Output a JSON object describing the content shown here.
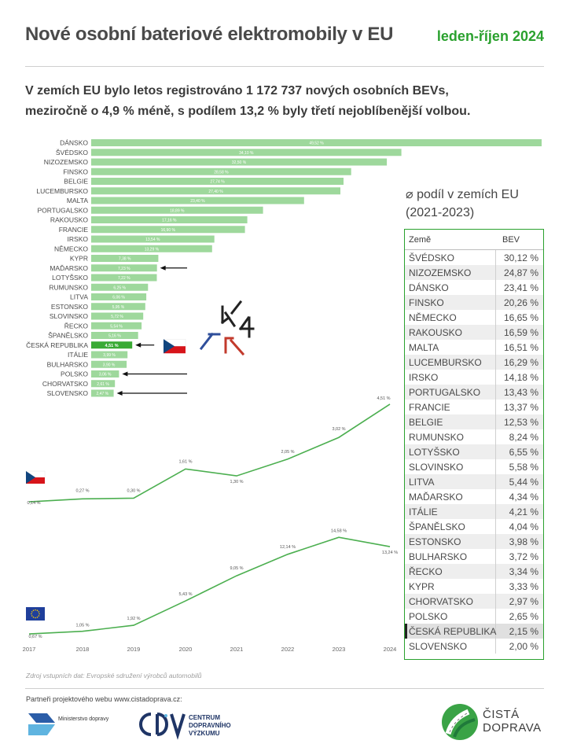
{
  "header": {
    "title": "Nové osobní bateriové elektromobily v EU",
    "period": "leden-říjen 2024",
    "lead_line1": "V zemích EU bylo letos registrováno 1 172 737 nových osobních BEVs,",
    "lead_line2": "meziročně o 4,9 % méně, s podílem 13,2 % byly třetí nejoblíbenější volbou."
  },
  "colors": {
    "bar": "#9ed89c",
    "bar_highlight": "#3aaa35",
    "line": "#4caf50",
    "accent": "#2aa12e"
  },
  "chart_data": [
    {
      "type": "bar",
      "orientation": "horizontal",
      "categories": [
        "DÁNSKO",
        "ŠVÉDSKO",
        "NIZOZEMSKO",
        "FINSKO",
        "BELGIE",
        "LUCEMBURSKO",
        "MALTA",
        "PORTUGALSKO",
        "RAKOUSKO",
        "FRANCIE",
        "IRSKO",
        "NĚMECKO",
        "KYPR",
        "MAĎARSKO",
        "LOTYŠSKO",
        "RUMUNSKO",
        "LITVA",
        "ESTONSKO",
        "SLOVINSKO",
        "ŘECKO",
        "ŠPANĚLSKO",
        "ČESKÁ REPUBLIKA",
        "ITÁLIE",
        "BULHARSKO",
        "POLSKO",
        "CHORVATSKO",
        "SLOVENSKO"
      ],
      "values": [
        49.52,
        34.1,
        32.5,
        28.58,
        27.74,
        27.4,
        23.4,
        18.89,
        17.16,
        16.9,
        13.54,
        13.29,
        7.38,
        7.23,
        7.22,
        6.25,
        6.06,
        5.95,
        5.72,
        5.54,
        5.16,
        4.51,
        3.99,
        3.9,
        3.06,
        2.61,
        2.47
      ],
      "value_labels": [
        "49,52 %",
        "34,10 %",
        "32,50 %",
        "28,58 %",
        "27,74 %",
        "27,40 %",
        "23,40 %",
        "18,89 %",
        "17,16 %",
        "16,90 %",
        "13,54 %",
        "13,29 %",
        "7,38 %",
        "7,23 %",
        "7,22 %",
        "6,25 %",
        "6,06 %",
        "5,95 %",
        "5,72 %",
        "5,54 %",
        "5,16 %",
        "4,51 %",
        "3,99 %",
        "3,90 %",
        "3,06 %",
        "2,61 %",
        "2,47 %"
      ],
      "highlight": "ČESKÁ REPUBLIKA",
      "arrows_to": [
        "MAĎARSKO",
        "ČESKÁ REPUBLIKA",
        "POLSKO",
        "SLOVENSKO"
      ]
    },
    {
      "type": "line",
      "flag": "CZ",
      "x": [
        2017,
        2018,
        2019,
        2020,
        2021,
        2022,
        2023,
        2024
      ],
      "values": [
        0.14,
        0.27,
        0.3,
        1.61,
        1.3,
        2.05,
        3.02,
        4.51
      ],
      "value_labels": [
        "0,14 %",
        "0,27 %",
        "0,30 %",
        "1,61 %",
        "1,30 %",
        "2,05 %",
        "3,02 %",
        "4,51 %"
      ]
    },
    {
      "type": "line",
      "flag": "EU",
      "x": [
        2017,
        2018,
        2019,
        2020,
        2021,
        2022,
        2023,
        2024
      ],
      "x_labels": [
        "2017",
        "2018",
        "2019",
        "2020",
        "2021",
        "2022",
        "2023",
        "2024"
      ],
      "values": [
        0.67,
        1.05,
        1.92,
        5.43,
        9.05,
        12.14,
        14.58,
        13.24
      ],
      "value_labels": [
        "0,67 %",
        "1,05 %",
        "1,92 %",
        "5,43 %",
        "9,05 %",
        "12,14 %",
        "14,58 %",
        "13,24 %"
      ]
    }
  ],
  "table": {
    "heading_line1": "⌀ podíl v zemích EU",
    "heading_line2": "(2021-2023)",
    "col_country": "Země",
    "col_bev": "BEV",
    "highlight": "ČESKÁ REPUBLIKA",
    "rows": [
      {
        "country": "ŠVÉDSKO",
        "bev": "30,12 %"
      },
      {
        "country": "NIZOZEMSKO",
        "bev": "24,87 %"
      },
      {
        "country": "DÁNSKO",
        "bev": "23,41 %"
      },
      {
        "country": "FINSKO",
        "bev": "20,26 %"
      },
      {
        "country": "NĚMECKO",
        "bev": "16,65 %"
      },
      {
        "country": "RAKOUSKO",
        "bev": "16,59 %"
      },
      {
        "country": "MALTA",
        "bev": "16,51 %"
      },
      {
        "country": "LUCEMBURSKO",
        "bev": "16,29 %"
      },
      {
        "country": "IRSKO",
        "bev": "14,18 %"
      },
      {
        "country": "PORTUGALSKO",
        "bev": "13,43 %"
      },
      {
        "country": "FRANCIE",
        "bev": "13,37 %"
      },
      {
        "country": "BELGIE",
        "bev": "12,53 %"
      },
      {
        "country": "RUMUNSKO",
        "bev": "8,24 %"
      },
      {
        "country": "LOTYŠSKO",
        "bev": "6,55 %"
      },
      {
        "country": "SLOVINSKO",
        "bev": "5,58 %"
      },
      {
        "country": "LITVA",
        "bev": "5,44 %"
      },
      {
        "country": "MAĎARSKO",
        "bev": "4,34 %"
      },
      {
        "country": "ITÁLIE",
        "bev": "4,21 %"
      },
      {
        "country": "ŠPANĚLSKO",
        "bev": "4,04 %"
      },
      {
        "country": "ESTONSKO",
        "bev": "3,98 %"
      },
      {
        "country": "BULHARSKO",
        "bev": "3,72 %"
      },
      {
        "country": "ŘECKO",
        "bev": "3,34 %"
      },
      {
        "country": "KYPR",
        "bev": "3,33 %"
      },
      {
        "country": "CHORVATSKO",
        "bev": "2,97 %"
      },
      {
        "country": "POLSKO",
        "bev": "2,65 %"
      },
      {
        "country": "ČESKÁ REPUBLIKA",
        "bev": "2,15 %"
      },
      {
        "country": "SLOVENSKO",
        "bev": "2,00 %"
      }
    ]
  },
  "footer": {
    "source": "Zdroj vstupních dat: Evropské sdružení výrobců automobilů",
    "partners": "Partneři projektového webu www.cistadoprava.cz:",
    "ministry_logo_text": "Ministerstvo dopravy",
    "cdv_line1": "CENTRUM",
    "cdv_line2": "DOPRAVNÍHO",
    "cdv_line3": "VÝZKUMU",
    "cd_line1": "ČISTÁ",
    "cd_line2": "DOPRAVA"
  }
}
